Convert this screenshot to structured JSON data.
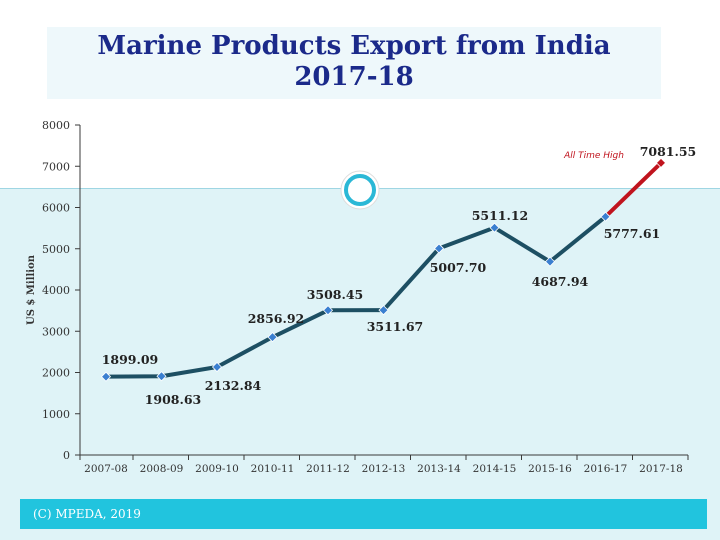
{
  "title_lines": [
    "Marine Products Export from India",
    "2017-18"
  ],
  "footer": "(C) MPEDA, 2019",
  "chart_data": {
    "type": "line",
    "title": "Marine Products Export from India 2017-18",
    "ylabel": "US $ Million",
    "xlabel": "",
    "ylim": [
      0,
      8000
    ],
    "yticks": [
      0,
      1000,
      2000,
      3000,
      4000,
      5000,
      6000,
      7000,
      8000
    ],
    "categories": [
      "2007-08",
      "2008-09",
      "2009-10",
      "2010-11",
      "2011-12",
      "2012-13",
      "2013-14",
      "2014-15",
      "2015-16",
      "2016-17",
      "2017-18"
    ],
    "series": [
      {
        "values": [
          1899.09,
          1908.63,
          2132.84,
          2856.92,
          3508.45,
          3511.67,
          5007.7,
          5511.12,
          4687.94,
          5777.61,
          7081.55
        ]
      }
    ],
    "data_labels": [
      "1899.09",
      "1908.63",
      "2132.84",
      "2856.92",
      "3508.45",
      "3511.67",
      "5007.70",
      "5511.12",
      "4687.94",
      "5777.61",
      "7081.55"
    ],
    "annotation": "All Time High",
    "colors": {
      "line": "#1d4f63",
      "marker": "#3a7fd0",
      "highlight": "#c0141e",
      "title": "#1b2a8a",
      "footer": "#21c4de"
    },
    "grid": false,
    "legend": "none"
  }
}
